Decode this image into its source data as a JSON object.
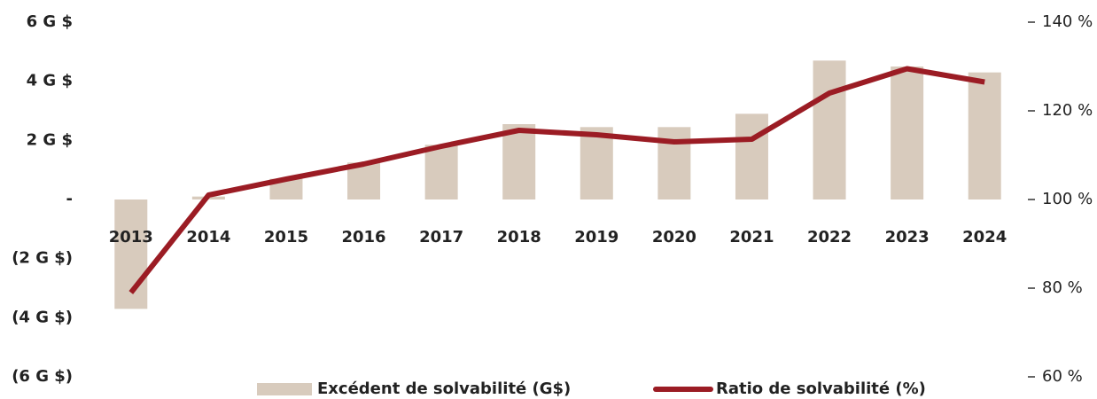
{
  "chart_data": {
    "type": "bar_line",
    "categories": [
      "2013",
      "2014",
      "2015",
      "2016",
      "2017",
      "2018",
      "2019",
      "2020",
      "2021",
      "2022",
      "2023",
      "2024"
    ],
    "series": [
      {
        "name": "Excédent de solvabilité (G$)",
        "color": "#d8cbbd",
        "type": "bar",
        "values": [
          -3.7,
          0.1,
          0.7,
          1.25,
          1.85,
          2.55,
          2.45,
          2.45,
          2.9,
          4.7,
          4.5,
          4.3
        ]
      },
      {
        "name": "Ratio de solvabilité (%)",
        "color": "#9b1c24",
        "type": "line",
        "axis": "y2",
        "values": [
          79,
          101,
          104.6,
          108,
          112,
          115.6,
          114.6,
          113,
          113.6,
          124,
          129.5,
          126.5
        ]
      }
    ],
    "ylim": [
      -6,
      6
    ],
    "yticks": [
      {
        "value": 6,
        "label": "6 G $"
      },
      {
        "value": 4,
        "label": "4 G $"
      },
      {
        "value": 2,
        "label": "2 G $"
      },
      {
        "value": 0,
        "label": "-"
      },
      {
        "value": -2,
        "label": "(2 G $)"
      },
      {
        "value": -4,
        "label": "(4 G $)"
      },
      {
        "value": -6,
        "label": "(6 G $)"
      }
    ],
    "y2lim": [
      60,
      140
    ],
    "y2ticks": [
      {
        "value": 140,
        "label": "140 %"
      },
      {
        "value": 120,
        "label": "120 %"
      },
      {
        "value": 100,
        "label": "100 %"
      },
      {
        "value": 80,
        "label": "80 %"
      },
      {
        "value": 60,
        "label": "60 %"
      }
    ],
    "legend": "bottom"
  }
}
